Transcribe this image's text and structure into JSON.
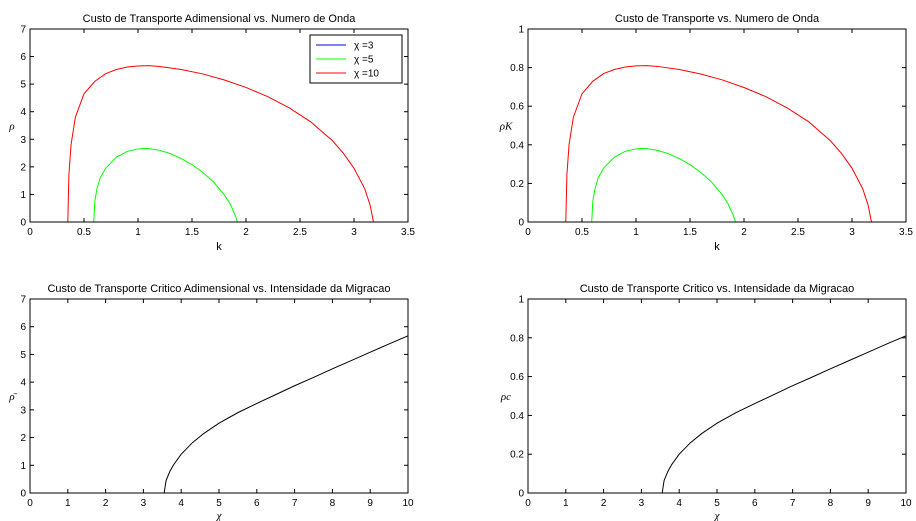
{
  "chart_data": [
    {
      "type": "line",
      "title": "Custo de Transporte Adimensional vs. Numero de Onda",
      "xlabel": "k",
      "ylabel": "ρ",
      "xlim": [
        0,
        3.5
      ],
      "ylim": [
        0,
        7
      ],
      "xticks": [
        0,
        0.5,
        1,
        1.5,
        2,
        2.5,
        3,
        3.5
      ],
      "xtick_labels": [
        "0",
        "0.5",
        "1",
        "1.5",
        "2",
        "2.5",
        "3",
        "3.5"
      ],
      "yticks": [
        0,
        1,
        2,
        3,
        4,
        5,
        6,
        7
      ],
      "ytick_labels": [
        "0",
        "1",
        "2",
        "3",
        "4",
        "5",
        "6",
        "7"
      ],
      "grid": false,
      "legend": "top-right",
      "series": [
        {
          "name": "χ =3",
          "color": "#0000ff",
          "x": [
            0,
            3.5
          ],
          "y": [
            0,
            0
          ]
        },
        {
          "name": "χ =5",
          "color": "#00ff00",
          "x": [
            0,
            0.59,
            0.6,
            0.62,
            0.65,
            0.7,
            0.8,
            0.9,
            1.0,
            1.06,
            1.1,
            1.2,
            1.3,
            1.4,
            1.5,
            1.6,
            1.7,
            1.8,
            1.85,
            1.9,
            1.92,
            3.5
          ],
          "y": [
            0,
            0,
            0.75,
            1.2,
            1.6,
            1.95,
            2.35,
            2.56,
            2.65,
            2.67,
            2.66,
            2.6,
            2.48,
            2.3,
            2.08,
            1.8,
            1.45,
            0.98,
            0.68,
            0.25,
            0,
            0
          ]
        },
        {
          "name": "χ =10",
          "color": "#ff0000",
          "x": [
            0,
            0.35,
            0.36,
            0.38,
            0.42,
            0.5,
            0.6,
            0.7,
            0.8,
            0.9,
            1.0,
            1.1,
            1.2,
            1.4,
            1.6,
            1.8,
            2.0,
            2.2,
            2.4,
            2.6,
            2.8,
            2.9,
            3.0,
            3.1,
            3.15,
            3.18,
            3.5
          ],
          "y": [
            0,
            0,
            1.7,
            2.8,
            3.8,
            4.65,
            5.1,
            5.38,
            5.53,
            5.62,
            5.66,
            5.67,
            5.64,
            5.53,
            5.37,
            5.15,
            4.88,
            4.55,
            4.14,
            3.63,
            2.95,
            2.5,
            1.95,
            1.2,
            0.6,
            0,
            0
          ]
        }
      ]
    },
    {
      "type": "line",
      "title": "Custo de Transporte vs. Numero de Onda",
      "xlabel": "k",
      "ylabel": "ρK",
      "xlim": [
        0,
        3.5
      ],
      "ylim": [
        0,
        1
      ],
      "xticks": [
        0,
        0.5,
        1,
        1.5,
        2,
        2.5,
        3,
        3.5
      ],
      "xtick_labels": [
        "0",
        "0.5",
        "1",
        "1.5",
        "2",
        "2.5",
        "3",
        "3.5"
      ],
      "yticks": [
        0,
        0.2,
        0.4,
        0.6,
        0.8,
        1
      ],
      "ytick_labels": [
        "0",
        "0.2",
        "0.4",
        "0.6",
        "0.8",
        "1"
      ],
      "grid": false,
      "series": [
        {
          "color": "#0000ff",
          "x": [
            0,
            3.5
          ],
          "y": [
            0,
            0
          ]
        },
        {
          "color": "#00ff00",
          "x": [
            0,
            0.59,
            0.6,
            0.62,
            0.65,
            0.7,
            0.8,
            0.9,
            1.0,
            1.06,
            1.1,
            1.2,
            1.3,
            1.4,
            1.5,
            1.6,
            1.7,
            1.8,
            1.85,
            1.9,
            1.92,
            3.5
          ],
          "y": [
            0,
            0,
            0.107,
            0.171,
            0.229,
            0.279,
            0.336,
            0.366,
            0.379,
            0.381,
            0.38,
            0.371,
            0.354,
            0.329,
            0.297,
            0.257,
            0.207,
            0.14,
            0.097,
            0.036,
            0,
            0
          ]
        },
        {
          "color": "#ff0000",
          "x": [
            0,
            0.35,
            0.36,
            0.38,
            0.42,
            0.5,
            0.6,
            0.7,
            0.8,
            0.9,
            1.0,
            1.1,
            1.2,
            1.4,
            1.6,
            1.8,
            2.0,
            2.2,
            2.4,
            2.6,
            2.8,
            2.9,
            3.0,
            3.1,
            3.15,
            3.18,
            3.5
          ],
          "y": [
            0,
            0,
            0.243,
            0.4,
            0.543,
            0.664,
            0.729,
            0.769,
            0.79,
            0.803,
            0.809,
            0.81,
            0.806,
            0.79,
            0.767,
            0.736,
            0.697,
            0.65,
            0.591,
            0.519,
            0.421,
            0.357,
            0.279,
            0.171,
            0.086,
            0,
            0
          ]
        }
      ]
    },
    {
      "type": "line",
      "title": "Custo de Transporte Critico Adimensional vs. Intensidade da Migracao",
      "xlabel": "χ",
      "ylabel": "ρ̄",
      "xlim": [
        0,
        10
      ],
      "ylim": [
        0,
        7
      ],
      "xticks": [
        0,
        1,
        2,
        3,
        4,
        5,
        6,
        7,
        8,
        9,
        10
      ],
      "xtick_labels": [
        "0",
        "1",
        "2",
        "3",
        "4",
        "5",
        "6",
        "7",
        "8",
        "9",
        "10"
      ],
      "yticks": [
        0,
        1,
        2,
        3,
        4,
        5,
        6,
        7
      ],
      "ytick_labels": [
        "0",
        "1",
        "2",
        "3",
        "4",
        "5",
        "6",
        "7"
      ],
      "grid": false,
      "series": [
        {
          "color": "#000000",
          "x": [
            3.55,
            3.6,
            3.7,
            3.8,
            4.0,
            4.3,
            4.6,
            5.0,
            5.5,
            6.0,
            6.5,
            7.0,
            7.5,
            8.0,
            8.5,
            9.0,
            9.5,
            10.0
          ],
          "y": [
            0,
            0.45,
            0.78,
            1.02,
            1.4,
            1.82,
            2.15,
            2.52,
            2.9,
            3.23,
            3.55,
            3.87,
            4.17,
            4.48,
            4.78,
            5.08,
            5.38,
            5.67
          ]
        }
      ]
    },
    {
      "type": "line",
      "title": "Custo de Transporte Critico vs. Intensidade da Migracao",
      "xlabel": "χ",
      "ylabel": "ρc",
      "xlim": [
        0,
        10
      ],
      "ylim": [
        0,
        1
      ],
      "xticks": [
        0,
        1,
        2,
        3,
        4,
        5,
        6,
        7,
        8,
        9,
        10
      ],
      "xtick_labels": [
        "0",
        "1",
        "2",
        "3",
        "4",
        "5",
        "6",
        "7",
        "8",
        "9",
        "10"
      ],
      "yticks": [
        0,
        0.2,
        0.4,
        0.6,
        0.8,
        1
      ],
      "ytick_labels": [
        "0",
        "0.2",
        "0.4",
        "0.6",
        "0.8",
        "1"
      ],
      "grid": false,
      "series": [
        {
          "color": "#000000",
          "x": [
            3.55,
            3.6,
            3.7,
            3.8,
            4.0,
            4.3,
            4.6,
            5.0,
            5.5,
            6.0,
            6.5,
            7.0,
            7.5,
            8.0,
            8.5,
            9.0,
            9.5,
            10.0
          ],
          "y": [
            0,
            0.064,
            0.111,
            0.146,
            0.2,
            0.26,
            0.307,
            0.36,
            0.414,
            0.461,
            0.507,
            0.553,
            0.596,
            0.64,
            0.683,
            0.726,
            0.769,
            0.81
          ]
        }
      ]
    }
  ]
}
